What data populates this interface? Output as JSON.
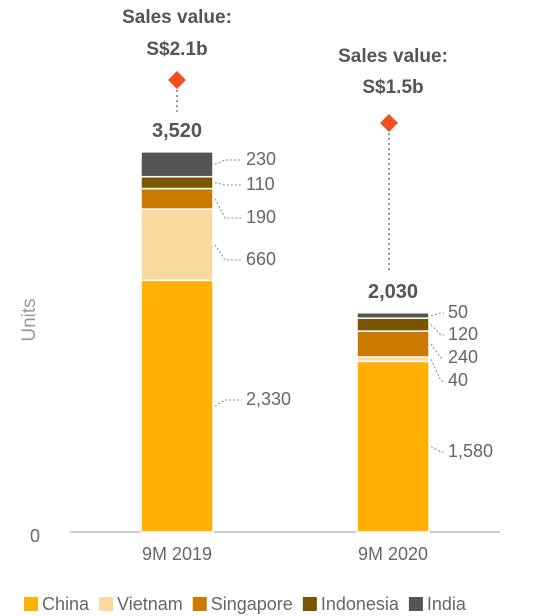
{
  "chart_data": {
    "type": "stacked_bar",
    "y_label": "Units",
    "categories": [
      "9M 2019",
      "9M 2020"
    ],
    "series": [
      {
        "name": "China",
        "color": "#FFB000",
        "values": [
          2330,
          1580
        ],
        "value_labels": [
          "2,330",
          "1,580"
        ]
      },
      {
        "name": "Vietnam",
        "color": "#F9D9A0",
        "values": [
          660,
          40
        ]
      },
      {
        "name": "Singapore",
        "color": "#C97A00",
        "values": [
          190,
          240
        ]
      },
      {
        "name": "Indonesia",
        "color": "#7A5500",
        "values": [
          110,
          120
        ]
      },
      {
        "name": "India",
        "color": "#555555",
        "values": [
          230,
          50
        ]
      }
    ],
    "totals": [
      3520,
      2030
    ],
    "total_labels": [
      "3,520",
      "2,030"
    ],
    "annotations": [
      {
        "text": "Sales value:",
        "value_label": "S$2.1b"
      },
      {
        "text": "Sales value:",
        "value_label": "S$1.5b"
      }
    ],
    "marker_color": "#F04E23",
    "ylim": [
      0,
      4000
    ],
    "yticks": [
      0
    ],
    "legend": "bottom"
  }
}
